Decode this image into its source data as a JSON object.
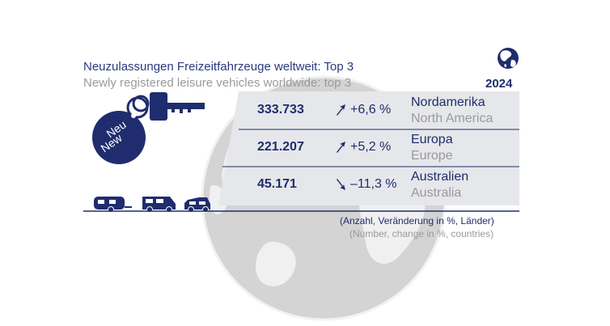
{
  "header": {
    "title_de": "Neuzulassungen Freizeitfahrzeuge weltweit: Top 3",
    "title_en": "Newly registered leisure vehicles worldwide: top 3",
    "year": "2024"
  },
  "tag": {
    "line1": "Neu",
    "line2": "New"
  },
  "chart_data": {
    "type": "table",
    "title": "Neuzulassungen Freizeitfahrzeuge weltweit: Top 3",
    "subtitle": "Newly registered leisure vehicles worldwide: top 3",
    "year": "2024",
    "rows": [
      {
        "value": "333.733",
        "change": "+6,6 %",
        "direction": "up",
        "region_de": "Nordamerika",
        "region_en": "North America"
      },
      {
        "value": "221.207",
        "change": "+5,2 %",
        "direction": "up",
        "region_de": "Europa",
        "region_en": "Europe"
      },
      {
        "value": "45.171",
        "change": "–11,3 %",
        "direction": "down",
        "region_de": "Australien",
        "region_en": "Australia"
      }
    ],
    "values": [
      333733,
      221207,
      45171
    ],
    "changes_percent": [
      6.6,
      5.2,
      -11.3
    ]
  },
  "footnote": {
    "de": "(Anzahl, Veränderung in %, Länder)",
    "en": "(Number, change in %, countries)"
  },
  "colors": {
    "navy": "#1f2d6e",
    "grey_text": "#9a9a9a",
    "panel": "#e6e7ea",
    "globe": "#d0d0d0"
  },
  "icons": [
    "globe-icon",
    "key-icon",
    "caravan-icon",
    "motorhome-icon",
    "camper-van-icon",
    "trend-up-arrow-icon",
    "trend-down-arrow-icon"
  ]
}
